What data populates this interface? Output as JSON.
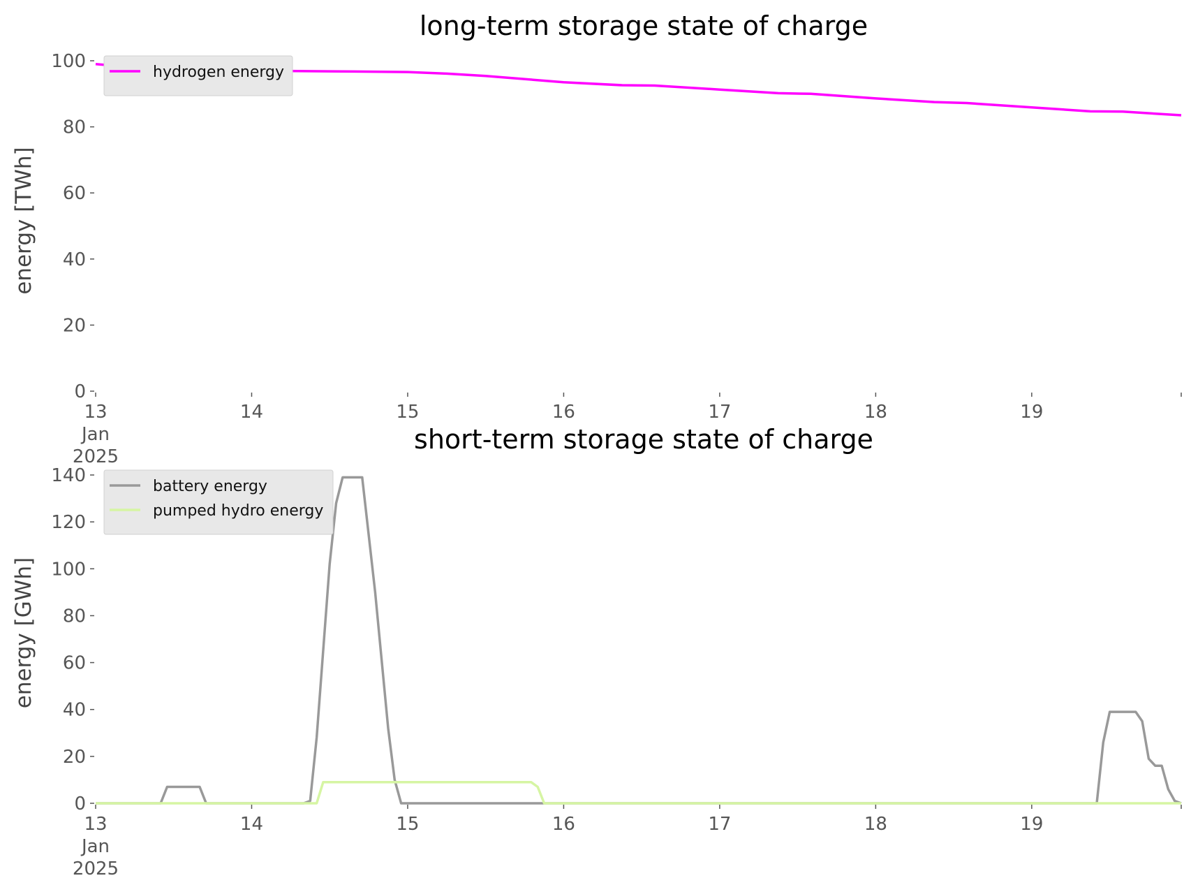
{
  "chart_data": [
    {
      "type": "line",
      "title": "long-term storage state of charge",
      "xlabel": "",
      "ylabel": "energy [TWh]",
      "ylim": [
        0,
        100
      ],
      "yticks": [
        0,
        20,
        40,
        60,
        80,
        100
      ],
      "xlim": [
        "2025-01-13 00:00",
        "2025-01-19 23:00"
      ],
      "xtick_labels": [
        "13\nJan\n2025",
        "14",
        "15",
        "16",
        "17",
        "18",
        "19"
      ],
      "grid": false,
      "legend_position": "top-left",
      "series": [
        {
          "name": "hydrogen energy",
          "color": "#ff00ff",
          "x": [
            "2025-01-13 00:00",
            "2025-01-13 06:00",
            "2025-01-13 12:00",
            "2025-01-14 00:00",
            "2025-01-14 12:00",
            "2025-01-15 00:00",
            "2025-01-15 06:00",
            "2025-01-15 12:00",
            "2025-01-16 00:00",
            "2025-01-16 09:00",
            "2025-01-16 14:00",
            "2025-01-17 00:00",
            "2025-01-17 09:00",
            "2025-01-17 14:00",
            "2025-01-18 00:00",
            "2025-01-18 09:00",
            "2025-01-18 14:00",
            "2025-01-19 00:00",
            "2025-01-19 09:00",
            "2025-01-19 14:00",
            "2025-01-19 23:00"
          ],
          "values": [
            99.0,
            98.0,
            97.5,
            97.0,
            96.8,
            96.6,
            96.1,
            95.4,
            93.5,
            92.6,
            92.5,
            91.3,
            90.2,
            90.0,
            88.6,
            87.5,
            87.2,
            85.9,
            84.7,
            84.6,
            83.5
          ]
        }
      ]
    },
    {
      "type": "line",
      "title": "short-term storage state of charge",
      "xlabel": "",
      "ylabel": "energy [GWh]",
      "ylim": [
        0,
        140
      ],
      "yticks": [
        0,
        20,
        40,
        60,
        80,
        100,
        120,
        140
      ],
      "xlim": [
        "2025-01-13 00:00",
        "2025-01-19 23:00"
      ],
      "xtick_labels": [
        "13\nJan\n2025",
        "14",
        "15",
        "16",
        "17",
        "18",
        "19"
      ],
      "grid": false,
      "legend_position": "top-left",
      "series": [
        {
          "name": "battery energy",
          "color": "#999999",
          "x": [
            "2025-01-13 00:00",
            "2025-01-13 10:00",
            "2025-01-13 11:00",
            "2025-01-13 16:00",
            "2025-01-13 17:00",
            "2025-01-14 08:00",
            "2025-01-14 09:00",
            "2025-01-14 10:00",
            "2025-01-14 12:00",
            "2025-01-14 13:00",
            "2025-01-14 14:00",
            "2025-01-14 17:00",
            "2025-01-14 19:00",
            "2025-01-14 21:00",
            "2025-01-14 22:00",
            "2025-01-14 23:00",
            "2025-01-15 00:00",
            "2025-01-19 10:00",
            "2025-01-19 11:00",
            "2025-01-19 12:00",
            "2025-01-19 16:00",
            "2025-01-19 17:00",
            "2025-01-19 18:00",
            "2025-01-19 19:00",
            "2025-01-19 20:00",
            "2025-01-19 21:00",
            "2025-01-19 22:00",
            "2025-01-19 23:00"
          ],
          "values": [
            0,
            0,
            7,
            7,
            0,
            0,
            1,
            28,
            102,
            128,
            139,
            139,
            90,
            32,
            10,
            0,
            0,
            0,
            26,
            39,
            39,
            35,
            19,
            16,
            16,
            6,
            1,
            0
          ]
        },
        {
          "name": "pumped hydro energy",
          "color": "#d6f5a3",
          "x": [
            "2025-01-13 00:00",
            "2025-01-14 10:00",
            "2025-01-14 11:00",
            "2025-01-15 19:00",
            "2025-01-15 20:00",
            "2025-01-15 21:00",
            "2025-01-19 23:00"
          ],
          "values": [
            0,
            0,
            9,
            9,
            7,
            0,
            0
          ]
        }
      ]
    }
  ]
}
